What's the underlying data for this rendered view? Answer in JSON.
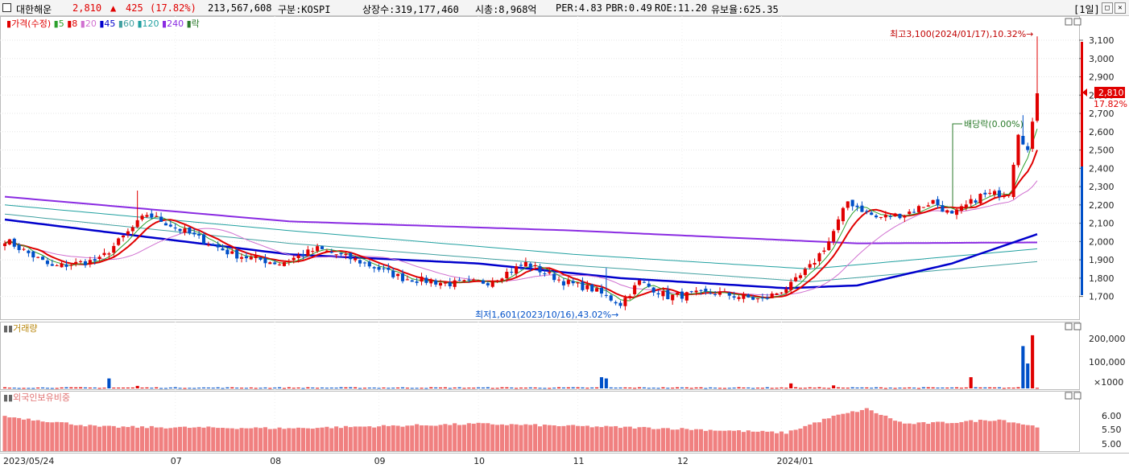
{
  "header": {
    "name": "대한해운",
    "price": "2,810",
    "change_arrow": "▲",
    "change": "425",
    "change_pct": "(17.82%)",
    "volume": "213,567,608",
    "market": "구분:KOSPI",
    "shares": "상장수:319,177,460",
    "mcap": "시총:8,968억",
    "per": "PER:4.83",
    "pbr": "PBR:0.49",
    "roe": "ROE:11.20",
    "reserve": "유보율:625.35",
    "period": "[1일]",
    "colors": {
      "up": "#e00000",
      "down": "#0050c8"
    }
  },
  "legend": {
    "price_label": "가격(수정)",
    "ma": [
      {
        "label": "5",
        "color": "#2ca02c"
      },
      {
        "label": "8",
        "color": "#e00000"
      },
      {
        "label": "20",
        "color": "#d070d0"
      },
      {
        "label": "45",
        "color": "#0000cc"
      },
      {
        "label": "60",
        "color": "#40a0a0"
      },
      {
        "label": "120",
        "color": "#20a0a0"
      },
      {
        "label": "240",
        "color": "#8a2be2"
      }
    ],
    "ex_label": "락"
  },
  "annotations": {
    "high": "최고3,100(2024/01/17),10.32%→",
    "low": "최저1,601(2023/10/16),43.02%→",
    "dividend": "배당락(0.00%)",
    "current_price": "2,810",
    "current_pct": "17.82%"
  },
  "volume_panel": {
    "title": "거래량",
    "ticks": [
      "200,000",
      "100,000",
      "×1000"
    ]
  },
  "foreign_panel": {
    "title": "외국인보유비중",
    "ticks": [
      "6.00",
      "5.50",
      "5.00"
    ]
  },
  "chart_data": {
    "type": "candlestick",
    "ylim": [
      1600,
      3150
    ],
    "yticks": [
      1700,
      1800,
      1900,
      2000,
      2100,
      2200,
      2300,
      2400,
      2500,
      2600,
      2700,
      2800,
      2900,
      3000,
      3100
    ],
    "x_labels": [
      "2023/05/24",
      "07",
      "08",
      "09",
      "10",
      "11",
      "12",
      "2024/01"
    ],
    "price_checkpoints": [
      {
        "i": 0,
        "c": 2010
      },
      {
        "i": 10,
        "c": 1860
      },
      {
        "i": 20,
        "c": 1900
      },
      {
        "i": 30,
        "c": 2150
      },
      {
        "i": 40,
        "c": 2030
      },
      {
        "i": 48,
        "c": 1930
      },
      {
        "i": 58,
        "c": 1880
      },
      {
        "i": 66,
        "c": 1960
      },
      {
        "i": 74,
        "c": 1900
      },
      {
        "i": 84,
        "c": 1800
      },
      {
        "i": 94,
        "c": 1770
      },
      {
        "i": 102,
        "c": 1780
      },
      {
        "i": 110,
        "c": 1880
      },
      {
        "i": 118,
        "c": 1780
      },
      {
        "i": 124,
        "c": 1740
      },
      {
        "i": 130,
        "c": 1660
      },
      {
        "i": 134,
        "c": 1780
      },
      {
        "i": 140,
        "c": 1700
      },
      {
        "i": 150,
        "c": 1720
      },
      {
        "i": 160,
        "c": 1680
      },
      {
        "i": 166,
        "c": 1760
      },
      {
        "i": 170,
        "c": 1860
      },
      {
        "i": 174,
        "c": 2000
      },
      {
        "i": 178,
        "c": 2220
      },
      {
        "i": 184,
        "c": 2130
      },
      {
        "i": 190,
        "c": 2150
      },
      {
        "i": 196,
        "c": 2220
      },
      {
        "i": 200,
        "c": 2140
      },
      {
        "i": 206,
        "c": 2250
      },
      {
        "i": 212,
        "c": 2270
      },
      {
        "i": 214,
        "c": 2600
      },
      {
        "i": 216,
        "c": 2500
      },
      {
        "i": 218,
        "c": 2810
      }
    ],
    "moving_averages_checkpoints": {
      "ma240": [
        {
          "i": 0,
          "v": 2245
        },
        {
          "i": 60,
          "v": 2110
        },
        {
          "i": 120,
          "v": 2060
        },
        {
          "i": 180,
          "v": 1990
        },
        {
          "i": 218,
          "v": 1995
        }
      ],
      "ma120": [
        {
          "i": 0,
          "v": 2200
        },
        {
          "i": 60,
          "v": 2060
        },
        {
          "i": 120,
          "v": 1930
        },
        {
          "i": 170,
          "v": 1850
        },
        {
          "i": 218,
          "v": 1960
        }
      ],
      "ma60": [
        {
          "i": 0,
          "v": 2150
        },
        {
          "i": 60,
          "v": 1990
        },
        {
          "i": 120,
          "v": 1870
        },
        {
          "i": 170,
          "v": 1780
        },
        {
          "i": 218,
          "v": 1890
        }
      ],
      "ma45": [
        {
          "i": 0,
          "v": 2120
        },
        {
          "i": 60,
          "v": 1930
        },
        {
          "i": 100,
          "v": 1880
        },
        {
          "i": 130,
          "v": 1800
        },
        {
          "i": 165,
          "v": 1745
        },
        {
          "i": 180,
          "v": 1760
        },
        {
          "i": 200,
          "v": 1880
        },
        {
          "i": 218,
          "v": 2040
        }
      ]
    },
    "volume_checkpoints": [
      {
        "i": 22,
        "v": 40000
      },
      {
        "i": 28,
        "v": 10000
      },
      {
        "i": 126,
        "v": 45000
      },
      {
        "i": 127,
        "v": 40000
      },
      {
        "i": 166,
        "v": 20000
      },
      {
        "i": 175,
        "v": 12000
      },
      {
        "i": 204,
        "v": 45000
      },
      {
        "i": 215,
        "v": 170000
      },
      {
        "i": 216,
        "v": 100000
      },
      {
        "i": 217,
        "v": 213568
      }
    ],
    "foreign_ratio_checkpoints": [
      {
        "i": 0,
        "v": 5.95
      },
      {
        "i": 20,
        "v": 5.6
      },
      {
        "i": 60,
        "v": 5.55
      },
      {
        "i": 100,
        "v": 5.7
      },
      {
        "i": 140,
        "v": 5.55
      },
      {
        "i": 165,
        "v": 5.4
      },
      {
        "i": 175,
        "v": 5.95
      },
      {
        "i": 182,
        "v": 6.2
      },
      {
        "i": 190,
        "v": 5.7
      },
      {
        "i": 200,
        "v": 5.75
      },
      {
        "i": 210,
        "v": 5.85
      },
      {
        "i": 218,
        "v": 5.6
      }
    ]
  }
}
